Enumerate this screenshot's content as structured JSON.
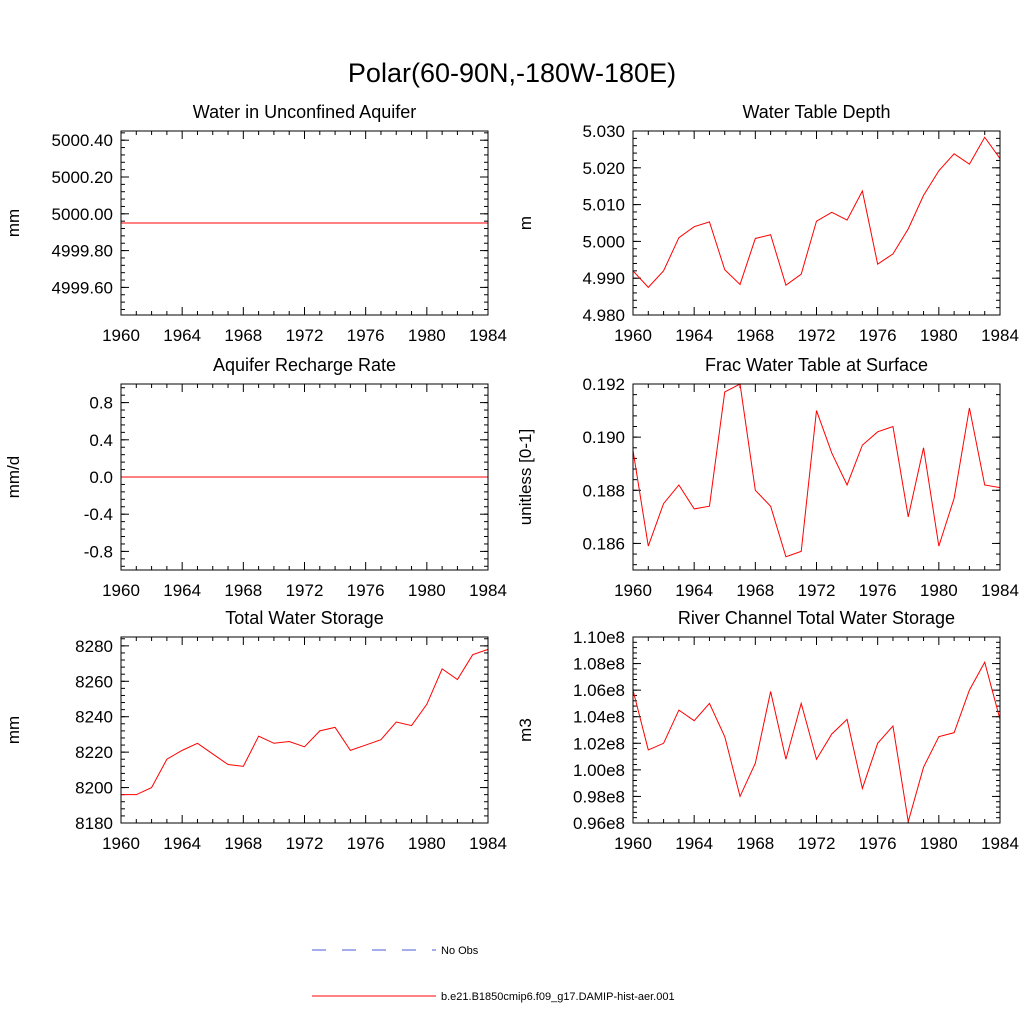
{
  "figure": {
    "title": "Polar(60-90N,-180W-180E)"
  },
  "legend": {
    "items": [
      {
        "label": "No Obs",
        "color": "#4a5ad8",
        "dash": true
      },
      {
        "label": "b.e21.B1850cmip6.f09_g17.DAMIP-hist-aer.001",
        "color": "#ff0000",
        "dash": false
      }
    ]
  },
  "chart_data": [
    {
      "type": "line",
      "title": "Water in Unconfined Aquifer",
      "ylabel": "mm",
      "xlim": [
        1960,
        1984
      ],
      "ylim": [
        4999.45,
        5000.45
      ],
      "x_ticks": [
        1960,
        1964,
        1968,
        1972,
        1976,
        1980,
        1984
      ],
      "y_ticks": [
        "4999.60",
        "4999.80",
        "5000.00",
        "5000.20",
        "5000.40"
      ],
      "x": [
        1960,
        1961,
        1962,
        1963,
        1964,
        1965,
        1966,
        1967,
        1968,
        1969,
        1970,
        1971,
        1972,
        1973,
        1974,
        1975,
        1976,
        1977,
        1978,
        1979,
        1980,
        1981,
        1982,
        1983,
        1984
      ],
      "series": [
        {
          "values": [
            4999.95,
            4999.95,
            4999.95,
            4999.95,
            4999.95,
            4999.95,
            4999.95,
            4999.95,
            4999.95,
            4999.95,
            4999.95,
            4999.95,
            4999.95,
            4999.95,
            4999.95,
            4999.95,
            4999.95,
            4999.95,
            4999.95,
            4999.95,
            4999.95,
            4999.95,
            4999.95,
            4999.95,
            4999.95
          ]
        }
      ]
    },
    {
      "type": "line",
      "title": "Water Table Depth",
      "ylabel": "m",
      "xlim": [
        1960,
        1984
      ],
      "ylim": [
        4.98,
        5.03
      ],
      "x_ticks": [
        1960,
        1964,
        1968,
        1972,
        1976,
        1980,
        1984
      ],
      "y_ticks": [
        "4.980",
        "4.990",
        "5.000",
        "5.010",
        "5.020",
        "5.030"
      ],
      "x": [
        1960,
        1961,
        1962,
        1963,
        1964,
        1965,
        1966,
        1967,
        1968,
        1969,
        1970,
        1971,
        1972,
        1973,
        1974,
        1975,
        1976,
        1977,
        1978,
        1979,
        1980,
        1981,
        1982,
        1983,
        1984
      ],
      "series": [
        {
          "values": [
            4.992,
            4.9875,
            4.992,
            5.001,
            5.004,
            5.0053,
            4.9923,
            4.9883,
            5.0008,
            5.0018,
            4.9881,
            4.9911,
            5.0055,
            5.0079,
            5.0058,
            5.0137,
            4.9938,
            4.9966,
            5.0034,
            5.0125,
            5.0192,
            5.0238,
            5.021,
            5.0283,
            5.0225
          ]
        }
      ]
    },
    {
      "type": "line",
      "title": "Aquifer Recharge Rate",
      "ylabel": "mm/d",
      "xlim": [
        1960,
        1984
      ],
      "ylim": [
        -1.0,
        1.0
      ],
      "x_ticks": [
        1960,
        1964,
        1968,
        1972,
        1976,
        1980,
        1984
      ],
      "y_ticks": [
        "-0.8",
        "-0.4",
        "0.0",
        "0.4",
        "0.8"
      ],
      "x": [
        1960,
        1961,
        1962,
        1963,
        1964,
        1965,
        1966,
        1967,
        1968,
        1969,
        1970,
        1971,
        1972,
        1973,
        1974,
        1975,
        1976,
        1977,
        1978,
        1979,
        1980,
        1981,
        1982,
        1983,
        1984
      ],
      "series": [
        {
          "values": [
            0,
            0,
            0,
            0,
            0,
            0,
            0,
            0,
            0,
            0,
            0,
            0,
            0,
            0,
            0,
            0,
            0,
            0,
            0,
            0,
            0,
            0,
            0,
            0,
            0
          ]
        }
      ]
    },
    {
      "type": "line",
      "title": "Frac Water Table at Surface",
      "ylabel": "unitless [0-1]",
      "xlim": [
        1960,
        1984
      ],
      "ylim": [
        0.185,
        0.192
      ],
      "x_ticks": [
        1960,
        1964,
        1968,
        1972,
        1976,
        1980,
        1984
      ],
      "y_ticks": [
        "0.186",
        "0.188",
        "0.190",
        "0.192"
      ],
      "x": [
        1960,
        1961,
        1962,
        1963,
        1964,
        1965,
        1966,
        1967,
        1968,
        1969,
        1970,
        1971,
        1972,
        1973,
        1974,
        1975,
        1976,
        1977,
        1978,
        1979,
        1980,
        1981,
        1982,
        1983,
        1984
      ],
      "series": [
        {
          "values": [
            0.1895,
            0.1859,
            0.1875,
            0.1882,
            0.1873,
            0.1874,
            0.1917,
            0.192,
            0.188,
            0.1874,
            0.1855,
            0.1857,
            0.191,
            0.1894,
            0.1882,
            0.1897,
            0.1902,
            0.1904,
            0.187,
            0.1896,
            0.1859,
            0.1877,
            0.1911,
            0.1882,
            0.1881
          ]
        }
      ]
    },
    {
      "type": "line",
      "title": "Total Water Storage",
      "ylabel": "mm",
      "xlim": [
        1960,
        1984
      ],
      "ylim": [
        8180,
        8285
      ],
      "x_ticks": [
        1960,
        1964,
        1968,
        1972,
        1976,
        1980,
        1984
      ],
      "y_ticks": [
        "8180",
        "8200",
        "8220",
        "8240",
        "8260",
        "8280"
      ],
      "x": [
        1960,
        1961,
        1962,
        1963,
        1964,
        1965,
        1966,
        1967,
        1968,
        1969,
        1970,
        1971,
        1972,
        1973,
        1974,
        1975,
        1976,
        1977,
        1978,
        1979,
        1980,
        1981,
        1982,
        1983,
        1984
      ],
      "series": [
        {
          "values": [
            8196,
            8196,
            8200,
            8216,
            8221,
            8225,
            8219,
            8213,
            8212,
            8229,
            8225,
            8226,
            8223,
            8232,
            8234,
            8221,
            8224,
            8227,
            8237,
            8235,
            8247,
            8267,
            8261,
            8275,
            8278
          ]
        }
      ]
    },
    {
      "type": "line",
      "title": "River Channel Total Water Storage",
      "ylabel": "m3",
      "xlim": [
        1960,
        1984
      ],
      "ylim": [
        96000000,
        110000000
      ],
      "x_ticks": [
        1960,
        1964,
        1968,
        1972,
        1976,
        1980,
        1984
      ],
      "y_ticks": [
        "0.96e8",
        "0.98e8",
        "1.00e8",
        "1.02e8",
        "1.04e8",
        "1.06e8",
        "1.08e8",
        "1.10e8"
      ],
      "x": [
        1960,
        1961,
        1962,
        1963,
        1964,
        1965,
        1966,
        1967,
        1968,
        1969,
        1970,
        1971,
        1972,
        1973,
        1974,
        1975,
        1976,
        1977,
        1978,
        1979,
        1980,
        1981,
        1982,
        1983,
        1984
      ],
      "series": [
        {
          "values": [
            106000000,
            101500000,
            102000000,
            104500000,
            103700000,
            105000000,
            102500000,
            98000000,
            100500000,
            105900000,
            100800000,
            105000000,
            100800000,
            102700000,
            103800000,
            98600000,
            102000000,
            103300000,
            96100000,
            100200000,
            102500000,
            102800000,
            106000000,
            108100000,
            103800000
          ]
        }
      ]
    }
  ]
}
